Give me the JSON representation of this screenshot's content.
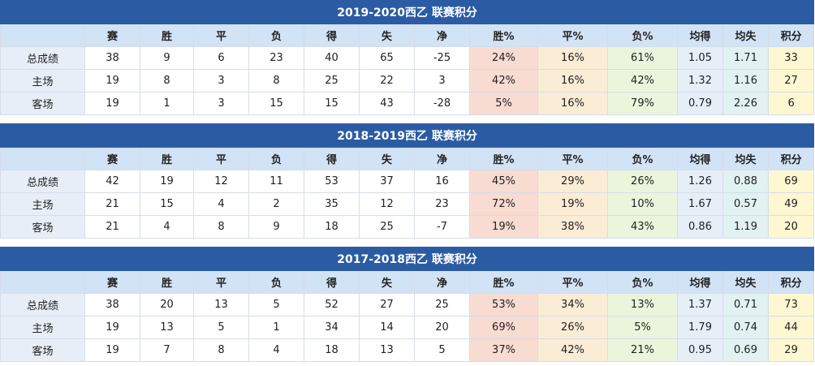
{
  "tables": [
    {
      "title": "2019-2020西乙 联赛积分",
      "headers": [
        "赛",
        "胜",
        "平",
        "负",
        "得",
        "失",
        "净",
        "胜%",
        "平%",
        "负%",
        "均得",
        "均失",
        "积分"
      ],
      "rows": [
        {
          "label": "总成绩",
          "cells": [
            "38",
            "9",
            "6",
            "23",
            "40",
            "65",
            "-25",
            "24%",
            "16%",
            "61%",
            "1.05",
            "1.71",
            "33"
          ]
        },
        {
          "label": "主场",
          "cells": [
            "19",
            "8",
            "3",
            "8",
            "25",
            "22",
            "3",
            "42%",
            "16%",
            "42%",
            "1.32",
            "1.16",
            "27"
          ]
        },
        {
          "label": "客场",
          "cells": [
            "19",
            "1",
            "3",
            "15",
            "15",
            "43",
            "-28",
            "5%",
            "16%",
            "79%",
            "0.79",
            "2.26",
            "6"
          ]
        }
      ]
    },
    {
      "title": "2018-2019西乙 联赛积分",
      "headers": [
        "赛",
        "胜",
        "平",
        "负",
        "得",
        "失",
        "净",
        "胜%",
        "平%",
        "负%",
        "均得",
        "均失",
        "积分"
      ],
      "rows": [
        {
          "label": "总成绩",
          "cells": [
            "42",
            "19",
            "12",
            "11",
            "53",
            "37",
            "16",
            "45%",
            "29%",
            "26%",
            "1.26",
            "0.88",
            "69"
          ]
        },
        {
          "label": "主场",
          "cells": [
            "21",
            "15",
            "4",
            "2",
            "35",
            "12",
            "23",
            "72%",
            "19%",
            "10%",
            "1.67",
            "0.57",
            "49"
          ]
        },
        {
          "label": "客场",
          "cells": [
            "21",
            "4",
            "8",
            "9",
            "18",
            "25",
            "-7",
            "19%",
            "38%",
            "43%",
            "0.86",
            "1.19",
            "20"
          ]
        }
      ]
    },
    {
      "title": "2017-2018西乙 联赛积分",
      "headers": [
        "赛",
        "胜",
        "平",
        "负",
        "得",
        "失",
        "净",
        "胜%",
        "平%",
        "负%",
        "均得",
        "均失",
        "积分"
      ],
      "rows": [
        {
          "label": "总成绩",
          "cells": [
            "38",
            "20",
            "13",
            "5",
            "52",
            "27",
            "25",
            "53%",
            "34%",
            "13%",
            "1.37",
            "0.71",
            "73"
          ]
        },
        {
          "label": "主场",
          "cells": [
            "19",
            "13",
            "5",
            "1",
            "34",
            "14",
            "20",
            "69%",
            "26%",
            "5%",
            "1.79",
            "0.74",
            "44"
          ]
        },
        {
          "label": "客场",
          "cells": [
            "19",
            "7",
            "8",
            "4",
            "18",
            "13",
            "5",
            "37%",
            "42%",
            "21%",
            "0.95",
            "0.69",
            "29"
          ]
        }
      ]
    }
  ]
}
